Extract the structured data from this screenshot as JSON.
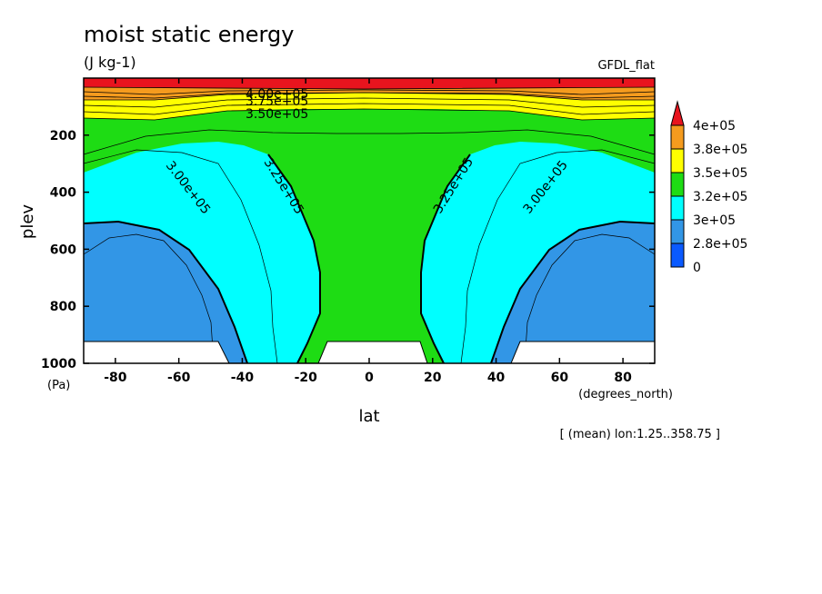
{
  "chart_data": {
    "type": "contour",
    "title": "moist static energy",
    "units": "(J kg-1)",
    "source": "GFDL_flat",
    "xlabel": "lat",
    "xunits": "(degrees_north)",
    "ylabel": "plev",
    "yunits": "(Pa)",
    "note": "[ (mean) lon:1.25..358.75 ]",
    "xlim": [
      -90,
      90
    ],
    "ylim": [
      1000,
      0
    ],
    "y_inverted": true,
    "xticks": [
      -80,
      -60,
      -40,
      -20,
      0,
      20,
      40,
      60,
      80
    ],
    "yticks": [
      200,
      400,
      600,
      800,
      1000
    ],
    "x_tick_labels": [
      "-80",
      "-60",
      "-40",
      "-20",
      "0",
      "20",
      "40",
      "60",
      "80"
    ],
    "y_tick_labels": [
      "200",
      "400",
      "600",
      "800",
      "1000"
    ],
    "legend": {
      "placement": "right",
      "labels": [
        "4e+05",
        "3.8e+05",
        "3.5e+05",
        "3.2e+05",
        "3e+05",
        "2.8e+05",
        "0"
      ],
      "colors": [
        "#e8141e",
        "#f59b1e",
        "#ffff00",
        "#1edc14",
        "#00ffff",
        "#3296e6",
        "#0a5aff"
      ]
    },
    "contour_labels": [
      {
        "text": "4.00e+05",
        "lat": -12,
        "plev": 35
      },
      {
        "text": "3.75e+05",
        "lat": -12,
        "plev": 70
      },
      {
        "text": "3.50e+05",
        "lat": -12,
        "plev": 115
      },
      {
        "text": "3.00e+05",
        "lat": -56,
        "plev": 385
      },
      {
        "text": "3.25e+05",
        "lat": -26,
        "plev": 365
      },
      {
        "text": "3.25e+05",
        "lat": 26,
        "plev": 365
      },
      {
        "text": "3.00e+05",
        "lat": 57,
        "plev": 385
      }
    ],
    "bands": [
      {
        "range": "> 4e+05",
        "color": "#e8141e",
        "plev_top": 0,
        "plev_bottom": 25
      },
      {
        "range": "3.8e+05 - 4e+05",
        "color": "#f59b1e",
        "plev_top": 25,
        "plev_bottom": 70
      },
      {
        "range": "3.5e+05 - 3.8e+05",
        "color": "#ffff00",
        "plev_top": 70,
        "plev_bottom": 110
      },
      {
        "range": "3.2e+05 - 3.5e+05",
        "color": "#1edc14",
        "region": "tropics and upper troposphere"
      },
      {
        "range": "3e+05 - 3.2e+05",
        "color": "#00ffff",
        "region": "subtropics / midlatitudes"
      },
      {
        "range": "2.8e+05 - 3e+05",
        "color": "#3296e6",
        "region": "high latitudes lower troposphere"
      }
    ],
    "topography_masks": [
      {
        "lat_range": [
          -90,
          -48
        ],
        "plev_top": 925
      },
      {
        "lat_range": [
          -15,
          16
        ],
        "plev_top": 925
      },
      {
        "lat_range": [
          48,
          90
        ],
        "plev_top": 925
      }
    ]
  }
}
